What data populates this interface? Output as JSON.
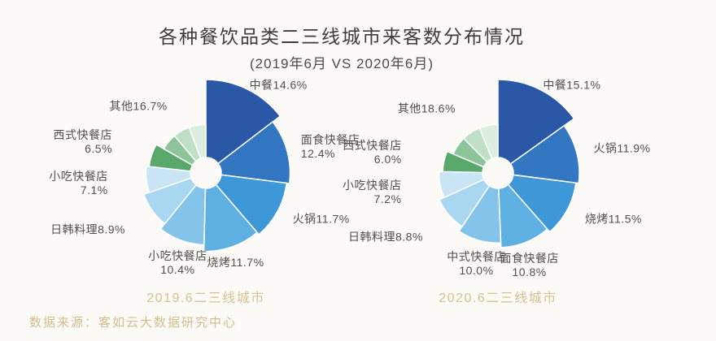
{
  "title": "各种餐饮品类二三线城市来客数分布情况",
  "subtitle": "(2019年6月 VS 2020年6月)",
  "source": "数据来源：客如云大数据研究中心",
  "colors": {
    "title_text": "#3c3c3c",
    "label_text": "#4f4f4f",
    "caption_gold": "#d5c190",
    "source_gold": "#d2bd8e",
    "background": "#fbfaf7"
  },
  "chart_data": [
    {
      "type": "pie",
      "variant": "nightingale-rose-donut",
      "caption": "2019.6二三线城市",
      "unit": "percent",
      "start_angle_deg": 0,
      "clockwise": true,
      "legend": "none",
      "segments": [
        {
          "label": "中餐",
          "value": 14.6,
          "pct": "14.6%",
          "color": "#2b57a7",
          "r": 1.0
        },
        {
          "label": "面食快餐店",
          "value": 12.4,
          "pct": "12.4%",
          "color": "#3377c2",
          "r": 0.9
        },
        {
          "label": "火锅",
          "value": 11.7,
          "pct": "11.7%",
          "color": "#3e98d7",
          "r": 0.87
        },
        {
          "label": "烧烤",
          "value": 11.7,
          "pct": "11.7%",
          "color": "#5fb0e2",
          "r": 0.84
        },
        {
          "label": "小吃快餐店",
          "value": 10.4,
          "pct": "10.4%",
          "color": "#85c4ea",
          "r": 0.77
        },
        {
          "label": "日韩料理",
          "value": 8.9,
          "pct": "8.9%",
          "color": "#a9d6f0",
          "r": 0.7
        },
        {
          "label": "小吃快餐店",
          "value": 7.1,
          "pct": "7.1%",
          "color": "#c8e4f5",
          "r": 0.64
        },
        {
          "label": "西式快餐店",
          "value": 6.5,
          "pct": "6.5%",
          "color": "#58a76b",
          "r": 0.61
        },
        {
          "label": "其他",
          "value": 16.7,
          "pct": "16.7%",
          "color": "#a5d3ae",
          "gradient_colors": [
            "#8dc59a",
            "#bfe0c6",
            "#dceede"
          ],
          "r": 0.52
        }
      ]
    },
    {
      "type": "pie",
      "variant": "nightingale-rose-donut",
      "caption": "2020.6二三线城市",
      "unit": "percent",
      "start_angle_deg": 0,
      "clockwise": true,
      "legend": "none",
      "segments": [
        {
          "label": "中餐",
          "value": 15.1,
          "pct": "15.1%",
          "color": "#2b57a7",
          "r": 1.0
        },
        {
          "label": "火锅",
          "value": 11.9,
          "pct": "11.9%",
          "color": "#3377c2",
          "r": 0.87
        },
        {
          "label": "烧烤",
          "value": 11.5,
          "pct": "11.5%",
          "color": "#3e98d7",
          "r": 0.84
        },
        {
          "label": "面食快餐店",
          "value": 10.8,
          "pct": "10.8%",
          "color": "#5fb0e2",
          "r": 0.8
        },
        {
          "label": "中式快餐店",
          "value": 10.0,
          "pct": "10.0%",
          "color": "#85c4ea",
          "r": 0.75
        },
        {
          "label": "日韩料理",
          "value": 8.8,
          "pct": "8.8%",
          "color": "#a9d6f0",
          "r": 0.69
        },
        {
          "label": "小吃快餐店",
          "value": 7.2,
          "pct": "7.2%",
          "color": "#c8e4f5",
          "r": 0.63
        },
        {
          "label": "西式快餐店",
          "value": 6.0,
          "pct": "6.0%",
          "color": "#58a76b",
          "r": 0.59
        },
        {
          "label": "其他",
          "value": 18.6,
          "pct": "18.6%",
          "color": "#a5d3ae",
          "gradient_colors": [
            "#8dc59a",
            "#bfe0c6",
            "#dceede"
          ],
          "r": 0.52
        }
      ]
    }
  ]
}
